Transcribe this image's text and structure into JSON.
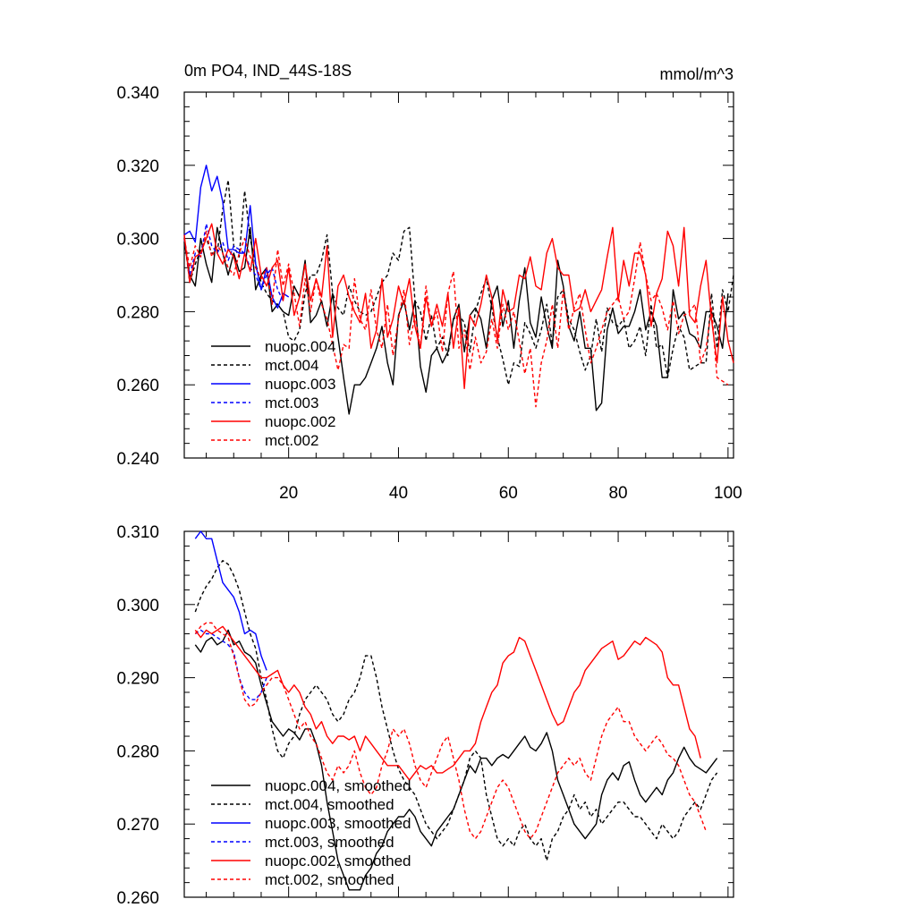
{
  "chart_data": [
    {
      "type": "line",
      "title": "0m PO4, IND_44S-18S",
      "units": "mmol/m^3",
      "xlabel": "",
      "ylabel": "",
      "xlim": [
        1,
        101
      ],
      "ylim": [
        0.24,
        0.34
      ],
      "yticks": [
        "0.240",
        "0.260",
        "0.280",
        "0.300",
        "0.320",
        "0.340"
      ],
      "xticks": [
        "20",
        "40",
        "60",
        "80",
        "100"
      ],
      "legend_position": "bottom-left",
      "series": [
        {
          "name": "nuopc.004",
          "color": "#000000",
          "dash": "solid",
          "x_start": 1,
          "values": [
            0.299,
            0.29,
            0.287,
            0.3,
            0.293,
            0.288,
            0.303,
            0.296,
            0.29,
            0.296,
            0.291,
            0.292,
            0.303,
            0.286,
            0.29,
            0.292,
            0.28,
            0.282,
            0.28,
            0.279,
            0.287,
            0.284,
            0.294,
            0.277,
            0.279,
            0.283,
            0.276,
            0.285,
            0.273,
            0.262,
            0.252,
            0.26,
            0.26,
            0.262,
            0.266,
            0.27,
            0.276,
            0.266,
            0.26,
            0.279,
            0.283,
            0.275,
            0.283,
            0.265,
            0.258,
            0.268,
            0.27,
            0.266,
            0.269,
            0.278,
            0.282,
            0.269,
            0.279,
            0.281,
            0.278,
            0.27,
            0.283,
            0.287,
            0.276,
            0.283,
            0.27,
            0.283,
            0.292,
            0.277,
            0.273,
            0.284,
            0.276,
            0.27,
            0.294,
            0.287,
            0.276,
            0.272,
            0.28,
            0.27,
            0.27,
            0.253,
            0.255,
            0.275,
            0.281,
            0.274,
            0.276,
            0.276,
            0.28,
            0.286,
            0.275,
            0.28,
            0.276,
            0.262,
            0.262,
            0.286,
            0.278,
            0.28,
            0.274,
            0.273,
            0.27,
            0.28,
            0.28,
            0.276,
            0.27,
            0.285
          ]
        },
        {
          "name": "mct.004",
          "color": "#000000",
          "dash": "dash",
          "x_start": 1,
          "values": [
            0.3,
            0.288,
            0.293,
            0.297,
            0.3,
            0.296,
            0.296,
            0.308,
            0.316,
            0.298,
            0.295,
            0.313,
            0.3,
            0.293,
            0.288,
            0.285,
            0.283,
            0.282,
            0.28,
            0.273,
            0.272,
            0.275,
            0.285,
            0.29,
            0.29,
            0.294,
            0.301,
            0.285,
            0.281,
            0.279,
            0.287,
            0.283,
            0.28,
            0.279,
            0.28,
            0.284,
            0.288,
            0.29,
            0.296,
            0.294,
            0.302,
            0.303,
            0.283,
            0.28,
            0.272,
            0.279,
            0.27,
            0.273,
            0.268,
            0.278,
            0.279,
            0.277,
            0.269,
            0.28,
            0.285,
            0.289,
            0.281,
            0.273,
            0.267,
            0.26,
            0.266,
            0.265,
            0.277,
            0.274,
            0.27,
            0.275,
            0.282,
            0.271,
            0.284,
            0.286,
            0.278,
            0.275,
            0.269,
            0.264,
            0.268,
            0.278,
            0.269,
            0.281,
            0.277,
            0.276,
            0.278,
            0.27,
            0.272,
            0.276,
            0.268,
            0.282,
            0.27,
            0.271,
            0.262,
            0.27,
            0.276,
            0.273,
            0.264,
            0.265,
            0.266,
            0.266,
            0.285,
            0.27,
            0.286,
            0.28,
            0.29
          ]
        },
        {
          "name": "nuopc.003",
          "color": "#0000ff",
          "dash": "solid",
          "x_start": 1,
          "values": [
            0.301,
            0.302,
            0.299,
            0.314,
            0.32,
            0.313,
            0.317,
            0.31,
            0.297,
            0.297,
            0.296,
            0.296,
            0.309,
            0.293,
            0.286,
            0.292,
            0.284,
            0.281,
            0.285,
            0.284
          ]
        },
        {
          "name": "mct.003",
          "color": "#0000ff",
          "dash": "dash",
          "x_start": 1,
          "values": [
            0.3,
            0.29,
            0.296,
            0.295,
            0.304,
            0.298,
            0.296,
            0.299,
            0.294,
            0.298,
            0.297,
            0.296,
            0.292,
            0.29,
            0.286,
            0.29,
            0.292,
            0.286,
            0.283
          ]
        },
        {
          "name": "nuopc.002",
          "color": "#ff0000",
          "dash": "solid",
          "x_start": 1,
          "values": [
            0.301,
            0.288,
            0.295,
            0.296,
            0.3,
            0.304,
            0.296,
            0.293,
            0.297,
            0.295,
            0.289,
            0.296,
            0.291,
            0.3,
            0.29,
            0.287,
            0.292,
            0.294,
            0.283,
            0.292,
            0.279,
            0.284,
            0.293,
            0.283,
            0.289,
            0.284,
            0.298,
            0.273,
            0.287,
            0.29,
            0.284,
            0.28,
            0.277,
            0.285,
            0.27,
            0.275,
            0.289,
            0.273,
            0.278,
            0.287,
            0.282,
            0.289,
            0.276,
            0.27,
            0.284,
            0.276,
            0.282,
            0.276,
            0.285,
            0.27,
            0.281,
            0.259,
            0.279,
            0.276,
            0.282,
            0.29,
            0.284,
            0.272,
            0.286,
            0.28,
            0.281,
            0.29,
            0.289,
            0.295,
            0.287,
            0.286,
            0.296,
            0.3,
            0.292,
            0.29,
            0.29,
            0.28,
            0.281,
            0.286,
            0.28,
            0.283,
            0.286,
            0.295,
            0.303,
            0.283,
            0.294,
            0.287,
            0.296,
            0.296,
            0.29,
            0.276,
            0.285,
            0.289,
            0.302,
            0.298,
            0.287,
            0.303,
            0.279,
            0.277,
            0.287,
            0.294,
            0.278,
            0.266,
            0.284,
            0.272,
            0.266
          ]
        },
        {
          "name": "mct.002",
          "color": "#ff0000",
          "dash": "dash",
          "x_start": 1,
          "values": [
            0.3,
            0.292,
            0.298,
            0.295,
            0.302,
            0.295,
            0.298,
            0.296,
            0.292,
            0.29,
            0.296,
            0.3,
            0.295,
            0.292,
            0.289,
            0.292,
            0.282,
            0.297,
            0.287,
            0.293,
            0.285,
            0.276,
            0.289,
            0.28,
            0.289,
            0.282,
            0.278,
            0.271,
            0.264,
            0.271,
            0.27,
            0.289,
            0.278,
            0.275,
            0.286,
            0.275,
            0.27,
            0.282,
            0.268,
            0.278,
            0.286,
            0.271,
            0.279,
            0.27,
            0.287,
            0.276,
            0.28,
            0.269,
            0.285,
            0.291,
            0.27,
            0.275,
            0.264,
            0.273,
            0.266,
            0.269,
            0.278,
            0.27,
            0.282,
            0.275,
            0.28,
            0.272,
            0.263,
            0.27,
            0.254,
            0.266,
            0.272,
            0.282,
            0.27,
            0.286,
            0.275,
            0.281,
            0.285,
            0.275,
            0.266,
            0.27,
            0.275,
            0.28,
            0.282,
            0.284,
            0.278,
            0.28,
            0.289,
            0.299,
            0.29,
            0.283,
            0.285,
            0.281,
            0.275,
            0.283,
            0.274,
            0.279,
            0.28,
            0.282,
            0.266,
            0.27,
            0.281,
            0.262,
            0.261,
            0.26
          ]
        }
      ]
    },
    {
      "type": "line",
      "title": "",
      "xlabel": "",
      "ylabel": "",
      "xlim": [
        1,
        101
      ],
      "ylim": [
        0.26,
        0.31
      ],
      "yticks": [
        "0.260",
        "0.270",
        "0.280",
        "0.290",
        "0.300",
        "0.310"
      ],
      "xticks": [],
      "legend_position": "bottom-left",
      "series": [
        {
          "name": "nuopc.004, smoothed",
          "color": "#000000",
          "dash": "solid",
          "x_start": 3,
          "values": [
            0.2945,
            0.2935,
            0.295,
            0.2955,
            0.2945,
            0.295,
            0.2965,
            0.2945,
            0.295,
            0.2935,
            0.293,
            0.292,
            0.289,
            0.2865,
            0.284,
            0.283,
            0.282,
            0.283,
            0.2825,
            0.2815,
            0.283,
            0.283,
            0.281,
            0.278,
            0.273,
            0.269,
            0.265,
            0.263,
            0.261,
            0.261,
            0.261,
            0.263,
            0.264,
            0.266,
            0.267,
            0.269,
            0.27,
            0.271,
            0.271,
            0.272,
            0.271,
            0.269,
            0.268,
            0.267,
            0.269,
            0.27,
            0.271,
            0.272,
            0.274,
            0.276,
            0.278,
            0.277,
            0.279,
            0.279,
            0.278,
            0.279,
            0.2795,
            0.279,
            0.28,
            0.281,
            0.282,
            0.2805,
            0.28,
            0.281,
            0.2825,
            0.28,
            0.276,
            0.274,
            0.272,
            0.27,
            0.269,
            0.268,
            0.269,
            0.27,
            0.274,
            0.276,
            0.277,
            0.276,
            0.278,
            0.2785,
            0.276,
            0.274,
            0.273,
            0.274,
            0.275,
            0.274,
            0.276,
            0.277,
            0.279,
            0.2805,
            0.279,
            0.278,
            0.2775,
            0.277,
            0.278,
            0.279
          ]
        },
        {
          "name": "mct.004, smoothed",
          "color": "#000000",
          "dash": "dash",
          "x_start": 3,
          "values": [
            0.299,
            0.301,
            0.3025,
            0.3035,
            0.305,
            0.306,
            0.3055,
            0.304,
            0.302,
            0.299,
            0.296,
            0.294,
            0.29,
            0.287,
            0.283,
            0.28,
            0.279,
            0.281,
            0.282,
            0.285,
            0.287,
            0.288,
            0.289,
            0.288,
            0.287,
            0.285,
            0.284,
            0.285,
            0.287,
            0.288,
            0.29,
            0.293,
            0.293,
            0.29,
            0.286,
            0.283,
            0.28,
            0.2775,
            0.276,
            0.275,
            0.274,
            0.272,
            0.27,
            0.269,
            0.268,
            0.269,
            0.27,
            0.272,
            0.274,
            0.276,
            0.279,
            0.28,
            0.279,
            0.274,
            0.271,
            0.268,
            0.267,
            0.268,
            0.267,
            0.269,
            0.27,
            0.268,
            0.267,
            0.268,
            0.265,
            0.268,
            0.269,
            0.271,
            0.272,
            0.274,
            0.272,
            0.273,
            0.271,
            0.272,
            0.27,
            0.271,
            0.272,
            0.273,
            0.273,
            0.272,
            0.271,
            0.271,
            0.27,
            0.269,
            0.268,
            0.27,
            0.269,
            0.268,
            0.269,
            0.271,
            0.272,
            0.273,
            0.272,
            0.274,
            0.276,
            0.277
          ]
        },
        {
          "name": "nuopc.003, smoothed",
          "color": "#0000ff",
          "dash": "solid",
          "x_start": 3,
          "values": [
            0.309,
            0.31,
            0.309,
            0.309,
            0.306,
            0.303,
            0.302,
            0.301,
            0.299,
            0.296,
            0.2965,
            0.296,
            0.293,
            0.291
          ]
        },
        {
          "name": "mct.003, smoothed",
          "color": "#0000ff",
          "dash": "dash",
          "x_start": 3,
          "values": [
            0.296,
            0.2965,
            0.296,
            0.296,
            0.2955,
            0.295,
            0.2945,
            0.2935,
            0.29,
            0.288,
            0.287,
            0.287,
            0.288,
            0.29
          ]
        },
        {
          "name": "nuopc.002, smoothed",
          "color": "#ff0000",
          "dash": "solid",
          "x_start": 3,
          "values": [
            0.2965,
            0.2955,
            0.2965,
            0.296,
            0.2965,
            0.297,
            0.296,
            0.295,
            0.294,
            0.293,
            0.292,
            0.291,
            0.29,
            0.29,
            0.2905,
            0.291,
            0.289,
            0.288,
            0.289,
            0.288,
            0.286,
            0.285,
            0.283,
            0.284,
            0.282,
            0.281,
            0.282,
            0.282,
            0.2815,
            0.282,
            0.28,
            0.282,
            0.281,
            0.28,
            0.279,
            0.278,
            0.278,
            0.278,
            0.277,
            0.276,
            0.277,
            0.278,
            0.2775,
            0.278,
            0.277,
            0.277,
            0.2775,
            0.278,
            0.279,
            0.28,
            0.28,
            0.281,
            0.284,
            0.286,
            0.288,
            0.289,
            0.292,
            0.293,
            0.2935,
            0.2955,
            0.295,
            0.293,
            0.291,
            0.289,
            0.287,
            0.285,
            0.2835,
            0.284,
            0.286,
            0.288,
            0.289,
            0.291,
            0.292,
            0.293,
            0.294,
            0.2945,
            0.295,
            0.2925,
            0.293,
            0.294,
            0.295,
            0.2945,
            0.2955,
            0.295,
            0.2945,
            0.2935,
            0.29,
            0.289,
            0.289,
            0.286,
            0.283,
            0.282,
            0.279
          ]
        },
        {
          "name": "mct.002, smoothed",
          "color": "#ff0000",
          "dash": "dash",
          "x_start": 3,
          "values": [
            0.296,
            0.297,
            0.2975,
            0.2975,
            0.2965,
            0.296,
            0.2955,
            0.293,
            0.29,
            0.287,
            0.286,
            0.2865,
            0.288,
            0.289,
            0.29,
            0.29,
            0.289,
            0.287,
            0.285,
            0.283,
            0.284,
            0.282,
            0.281,
            0.279,
            0.277,
            0.276,
            0.278,
            0.277,
            0.278,
            0.28,
            0.277,
            0.275,
            0.274,
            0.275,
            0.278,
            0.28,
            0.283,
            0.282,
            0.283,
            0.281,
            0.278,
            0.276,
            0.275,
            0.277,
            0.279,
            0.281,
            0.282,
            0.279,
            0.276,
            0.272,
            0.269,
            0.268,
            0.269,
            0.271,
            0.273,
            0.275,
            0.276,
            0.275,
            0.273,
            0.271,
            0.269,
            0.268,
            0.269,
            0.271,
            0.273,
            0.275,
            0.277,
            0.278,
            0.279,
            0.278,
            0.279,
            0.277,
            0.276,
            0.279,
            0.282,
            0.284,
            0.285,
            0.286,
            0.284,
            0.284,
            0.282,
            0.281,
            0.28,
            0.281,
            0.282,
            0.281,
            0.2795,
            0.279,
            0.278,
            0.276,
            0.274,
            0.273,
            0.271,
            0.269
          ]
        }
      ]
    }
  ]
}
